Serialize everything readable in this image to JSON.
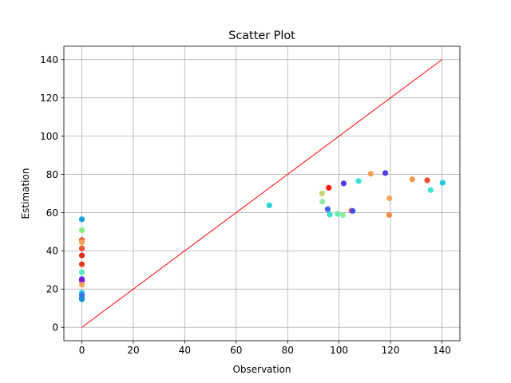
{
  "chart_data": {
    "type": "scatter",
    "title": "Scatter Plot",
    "xlabel": "Observation",
    "ylabel": "Estimation",
    "xlim": [
      -7,
      147
    ],
    "ylim": [
      -7,
      147
    ],
    "xticks": [
      0,
      20,
      40,
      60,
      80,
      100,
      120,
      140
    ],
    "yticks": [
      0,
      20,
      40,
      60,
      80,
      100,
      120,
      140
    ],
    "grid": true,
    "reference_line": {
      "from": [
        0,
        0
      ],
      "to": [
        140,
        140
      ],
      "color": "#ff0000"
    },
    "points": [
      {
        "x": 0,
        "y": 56.5,
        "color": "#1e9ee0"
      },
      {
        "x": 0,
        "y": 50.8,
        "color": "#7ef07e"
      },
      {
        "x": 0,
        "y": 45.7,
        "color": "#f2603c"
      },
      {
        "x": 0,
        "y": 44.5,
        "color": "#f7a35c"
      },
      {
        "x": 0,
        "y": 41.3,
        "color": "#f0502b"
      },
      {
        "x": 0,
        "y": 37.6,
        "color": "#e02a1c"
      },
      {
        "x": 0,
        "y": 33.0,
        "color": "#e83a22"
      },
      {
        "x": 0,
        "y": 28.8,
        "color": "#5aeac0"
      },
      {
        "x": 0,
        "y": 25.2,
        "color": "#4b33e8"
      },
      {
        "x": 0,
        "y": 24.4,
        "color": "#8a12e6"
      },
      {
        "x": 0,
        "y": 22.3,
        "color": "#f5a45a"
      },
      {
        "x": 0,
        "y": 18.0,
        "color": "#25c0e0"
      },
      {
        "x": 0,
        "y": 16.8,
        "color": "#3a78f0"
      },
      {
        "x": 0,
        "y": 15.3,
        "color": "#2b6cf2"
      },
      {
        "x": 0,
        "y": 14.7,
        "color": "#1b8ed6"
      },
      {
        "x": 72.9,
        "y": 63.8,
        "color": "#28d6d6"
      },
      {
        "x": 93.4,
        "y": 70.0,
        "color": "#c4d46a"
      },
      {
        "x": 93.5,
        "y": 65.8,
        "color": "#90eea0"
      },
      {
        "x": 95.6,
        "y": 61.8,
        "color": "#3a63f0"
      },
      {
        "x": 96.0,
        "y": 73.0,
        "color": "#ff1a00"
      },
      {
        "x": 96.4,
        "y": 59.0,
        "color": "#36e0d0"
      },
      {
        "x": 99.4,
        "y": 59.3,
        "color": "#6ce8b6"
      },
      {
        "x": 101.5,
        "y": 58.7,
        "color": "#8aeea0"
      },
      {
        "x": 101.8,
        "y": 75.3,
        "color": "#4b3ee8"
      },
      {
        "x": 104.8,
        "y": 61.0,
        "color": "#f2683a"
      },
      {
        "x": 105.3,
        "y": 60.9,
        "color": "#4a4ef0"
      },
      {
        "x": 107.6,
        "y": 76.5,
        "color": "#38e0d6"
      },
      {
        "x": 112.3,
        "y": 80.3,
        "color": "#f5a05a"
      },
      {
        "x": 118.0,
        "y": 80.7,
        "color": "#4d40e8"
      },
      {
        "x": 119.6,
        "y": 67.5,
        "color": "#f5a45a"
      },
      {
        "x": 119.5,
        "y": 58.8,
        "color": "#f58a48"
      },
      {
        "x": 128.5,
        "y": 77.4,
        "color": "#f59a52"
      },
      {
        "x": 134.3,
        "y": 76.9,
        "color": "#f0502b"
      },
      {
        "x": 135.6,
        "y": 71.8,
        "color": "#3ee6cc"
      },
      {
        "x": 140.3,
        "y": 75.6,
        "color": "#22c8e0"
      }
    ]
  }
}
